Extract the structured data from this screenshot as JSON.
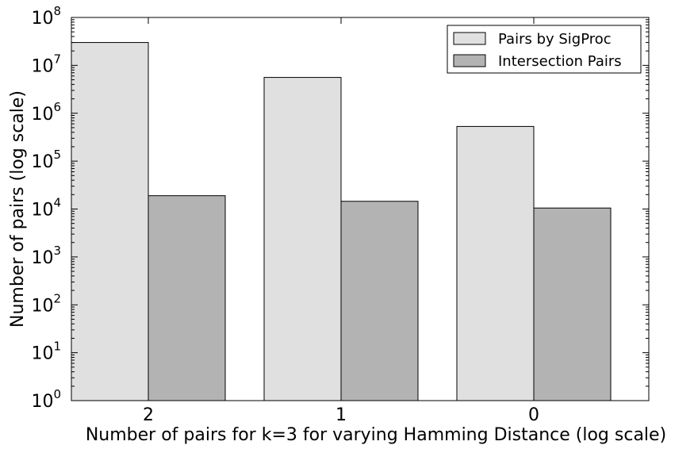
{
  "chart_data": {
    "type": "bar",
    "categories": [
      "2",
      "1",
      "0"
    ],
    "series": [
      {
        "name": "Pairs by SigProc",
        "values": [
          30000000,
          5600000,
          530000
        ],
        "color": "#e0e0e0"
      },
      {
        "name": "Intersection Pairs",
        "values": [
          19000,
          14500,
          10500
        ],
        "color": "#b3b3b3"
      }
    ],
    "xlabel": "Number of pairs for k=3 for varying Hamming Distance (log scale)",
    "ylabel": "Number of pairs (log scale)",
    "yscale": "log",
    "ylim": [
      1,
      100000000
    ],
    "yticks": [
      {
        "base": "10",
        "exp": "0"
      },
      {
        "base": "10",
        "exp": "1"
      },
      {
        "base": "10",
        "exp": "2"
      },
      {
        "base": "10",
        "exp": "3"
      },
      {
        "base": "10",
        "exp": "4"
      },
      {
        "base": "10",
        "exp": "5"
      },
      {
        "base": "10",
        "exp": "6"
      },
      {
        "base": "10",
        "exp": "7"
      },
      {
        "base": "10",
        "exp": "8"
      }
    ],
    "legend_position": "top-right",
    "grid": false
  }
}
